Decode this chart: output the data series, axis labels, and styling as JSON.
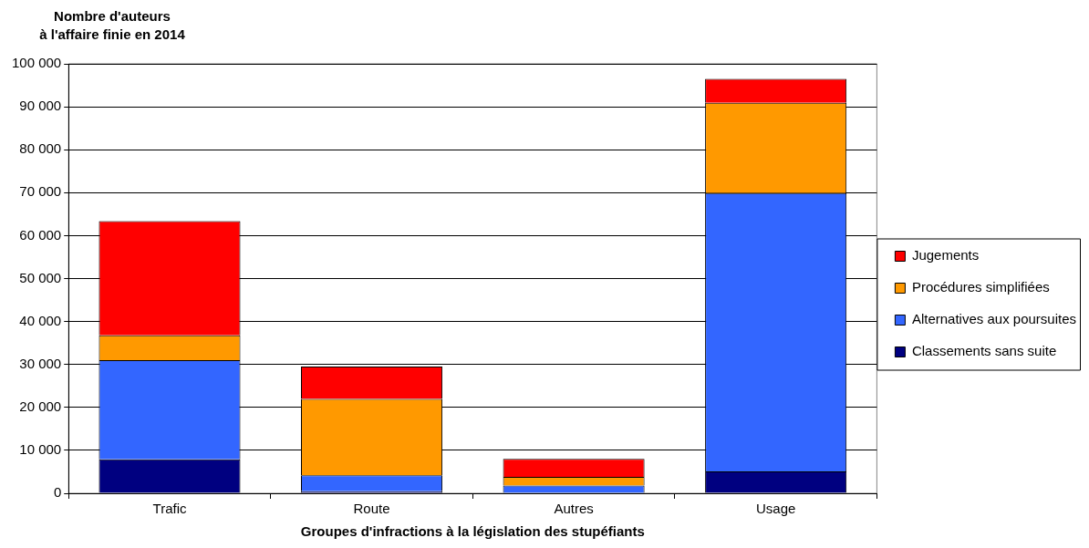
{
  "chart_data": {
    "type": "bar",
    "stacked": true,
    "ylabel": "Nombre d'auteurs\nà l'affaire finie en 2014",
    "xlabel": "Groupes d'infractions à la législation des stupéfiants",
    "categories": [
      "Trafic",
      "Route",
      "Autres",
      "Usage"
    ],
    "series": [
      {
        "name": "Classements sans suite",
        "color": "#000080",
        "values": [
          7900,
          500,
          null,
          5100
        ]
      },
      {
        "name": "Alternatives aux poursuites",
        "color": "#3366ff",
        "values": [
          23100,
          3700,
          1800,
          64800
        ]
      },
      {
        "name": "Procédures simplifiées",
        "color": "#ff9900",
        "values": [
          5800,
          17800,
          2000,
          21000
        ]
      },
      {
        "name": "Jugements",
        "color": "#ff0000",
        "values": [
          26600,
          7500,
          4200,
          5600
        ]
      }
    ],
    "ylim": [
      0,
      100000
    ],
    "yticks": [
      {
        "value": 0,
        "label": "0"
      },
      {
        "value": 10000,
        "label": "10 000"
      },
      {
        "value": 20000,
        "label": "20 000"
      },
      {
        "value": 30000,
        "label": "30 000"
      },
      {
        "value": 40000,
        "label": "40 000"
      },
      {
        "value": 50000,
        "label": "50 000"
      },
      {
        "value": 60000,
        "label": "60 000"
      },
      {
        "value": 70000,
        "label": "70 000"
      },
      {
        "value": 80000,
        "label": "80 000"
      },
      {
        "value": 90000,
        "label": "90 000"
      },
      {
        "value": 100000,
        "label": "100 000"
      }
    ],
    "grid": "y",
    "legend": "right"
  }
}
